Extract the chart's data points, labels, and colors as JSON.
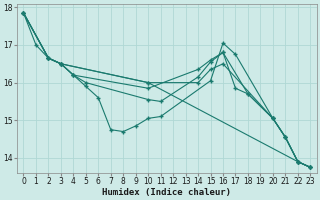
{
  "xlabel": "Humidex (Indice chaleur)",
  "background_color": "#ceeae7",
  "grid_color": "#b0d8d4",
  "line_color": "#1a7a6e",
  "xlim": [
    -0.5,
    23.5
  ],
  "ylim": [
    13.6,
    18.1
  ],
  "yticks": [
    14,
    15,
    16,
    17,
    18
  ],
  "xticks": [
    0,
    1,
    2,
    3,
    4,
    5,
    6,
    7,
    8,
    9,
    10,
    11,
    12,
    13,
    14,
    15,
    16,
    17,
    18,
    19,
    20,
    21,
    22,
    23
  ],
  "lines": [
    {
      "x": [
        0,
        1,
        2,
        3,
        4,
        5,
        6,
        7,
        8,
        9,
        10,
        11,
        15,
        16,
        17,
        20,
        21,
        22,
        23
      ],
      "y": [
        17.85,
        17.0,
        16.65,
        16.5,
        16.2,
        15.9,
        15.6,
        14.75,
        14.7,
        14.85,
        15.05,
        15.1,
        16.05,
        17.05,
        16.75,
        15.05,
        14.55,
        13.9,
        13.75
      ]
    },
    {
      "x": [
        0,
        2,
        3,
        4,
        5,
        10,
        11,
        14,
        15,
        16,
        17,
        18,
        20,
        21,
        22,
        23
      ],
      "y": [
        17.85,
        16.65,
        16.5,
        16.2,
        16.0,
        15.55,
        15.5,
        16.15,
        16.55,
        16.8,
        15.85,
        15.7,
        15.05,
        14.55,
        13.9,
        13.75
      ]
    },
    {
      "x": [
        0,
        2,
        3,
        4,
        10,
        14,
        15,
        16,
        18,
        20,
        21,
        22,
        23
      ],
      "y": [
        17.85,
        16.65,
        16.5,
        16.2,
        15.85,
        16.35,
        16.6,
        16.8,
        15.7,
        15.05,
        14.55,
        13.9,
        13.75
      ]
    },
    {
      "x": [
        0,
        2,
        3,
        10,
        14,
        15,
        16,
        20,
        21,
        22,
        23
      ],
      "y": [
        17.85,
        16.65,
        16.5,
        16.0,
        16.0,
        16.35,
        16.5,
        15.05,
        14.55,
        13.9,
        13.75
      ]
    },
    {
      "x": [
        0,
        2,
        3,
        10,
        22,
        23
      ],
      "y": [
        17.85,
        16.65,
        16.5,
        16.0,
        13.9,
        13.75
      ]
    }
  ]
}
